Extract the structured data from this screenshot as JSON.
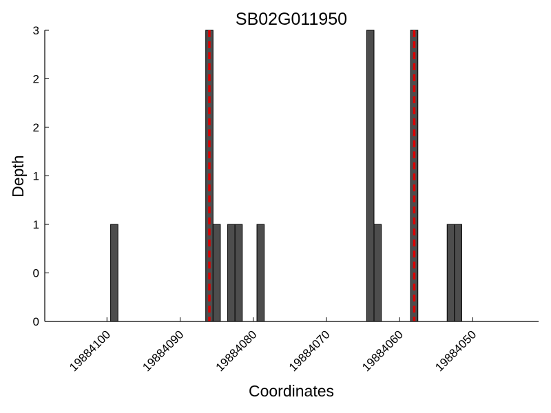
{
  "chart_data": {
    "type": "bar",
    "title": "SB02G011950",
    "xlabel": "Coordinates",
    "ylabel": "Depth",
    "x_direction": "descending",
    "xlim": [
      19884108.5,
      19884041.0
    ],
    "ylim": [
      0,
      3
    ],
    "x_ticks": [
      {
        "value": 19884100,
        "label": "19884100"
      },
      {
        "value": 19884090,
        "label": "19884090"
      },
      {
        "value": 19884080,
        "label": "19884080"
      },
      {
        "value": 19884070,
        "label": "19884070"
      },
      {
        "value": 19884060,
        "label": "19884060"
      },
      {
        "value": 19884050,
        "label": "19884050"
      }
    ],
    "y_ticks": [
      {
        "value": 0,
        "label": "0"
      },
      {
        "value": 0.5,
        "label": "0"
      },
      {
        "value": 1,
        "label": "1"
      },
      {
        "value": 1.5,
        "label": "1"
      },
      {
        "value": 2,
        "label": "2"
      },
      {
        "value": 2.5,
        "label": "2"
      },
      {
        "value": 3,
        "label": "3"
      }
    ],
    "bar_width": 1,
    "bars": [
      {
        "x": 19884099,
        "value": 1
      },
      {
        "x": 19884086,
        "value": 3
      },
      {
        "x": 19884085,
        "value": 1
      },
      {
        "x": 19884083,
        "value": 1
      },
      {
        "x": 19884082,
        "value": 1
      },
      {
        "x": 19884079,
        "value": 1
      },
      {
        "x": 19884064,
        "value": 3
      },
      {
        "x": 19884063,
        "value": 1
      },
      {
        "x": 19884058,
        "value": 3
      },
      {
        "x": 19884053,
        "value": 1
      },
      {
        "x": 19884052,
        "value": 1
      }
    ],
    "reference_lines": [
      {
        "x": 19884086
      },
      {
        "x": 19884058
      }
    ],
    "colors": {
      "bar_fill": "#4d4d4d",
      "bar_edge": "#000000",
      "reference_line": "#dd0000"
    },
    "grid": false,
    "legend": "none"
  }
}
